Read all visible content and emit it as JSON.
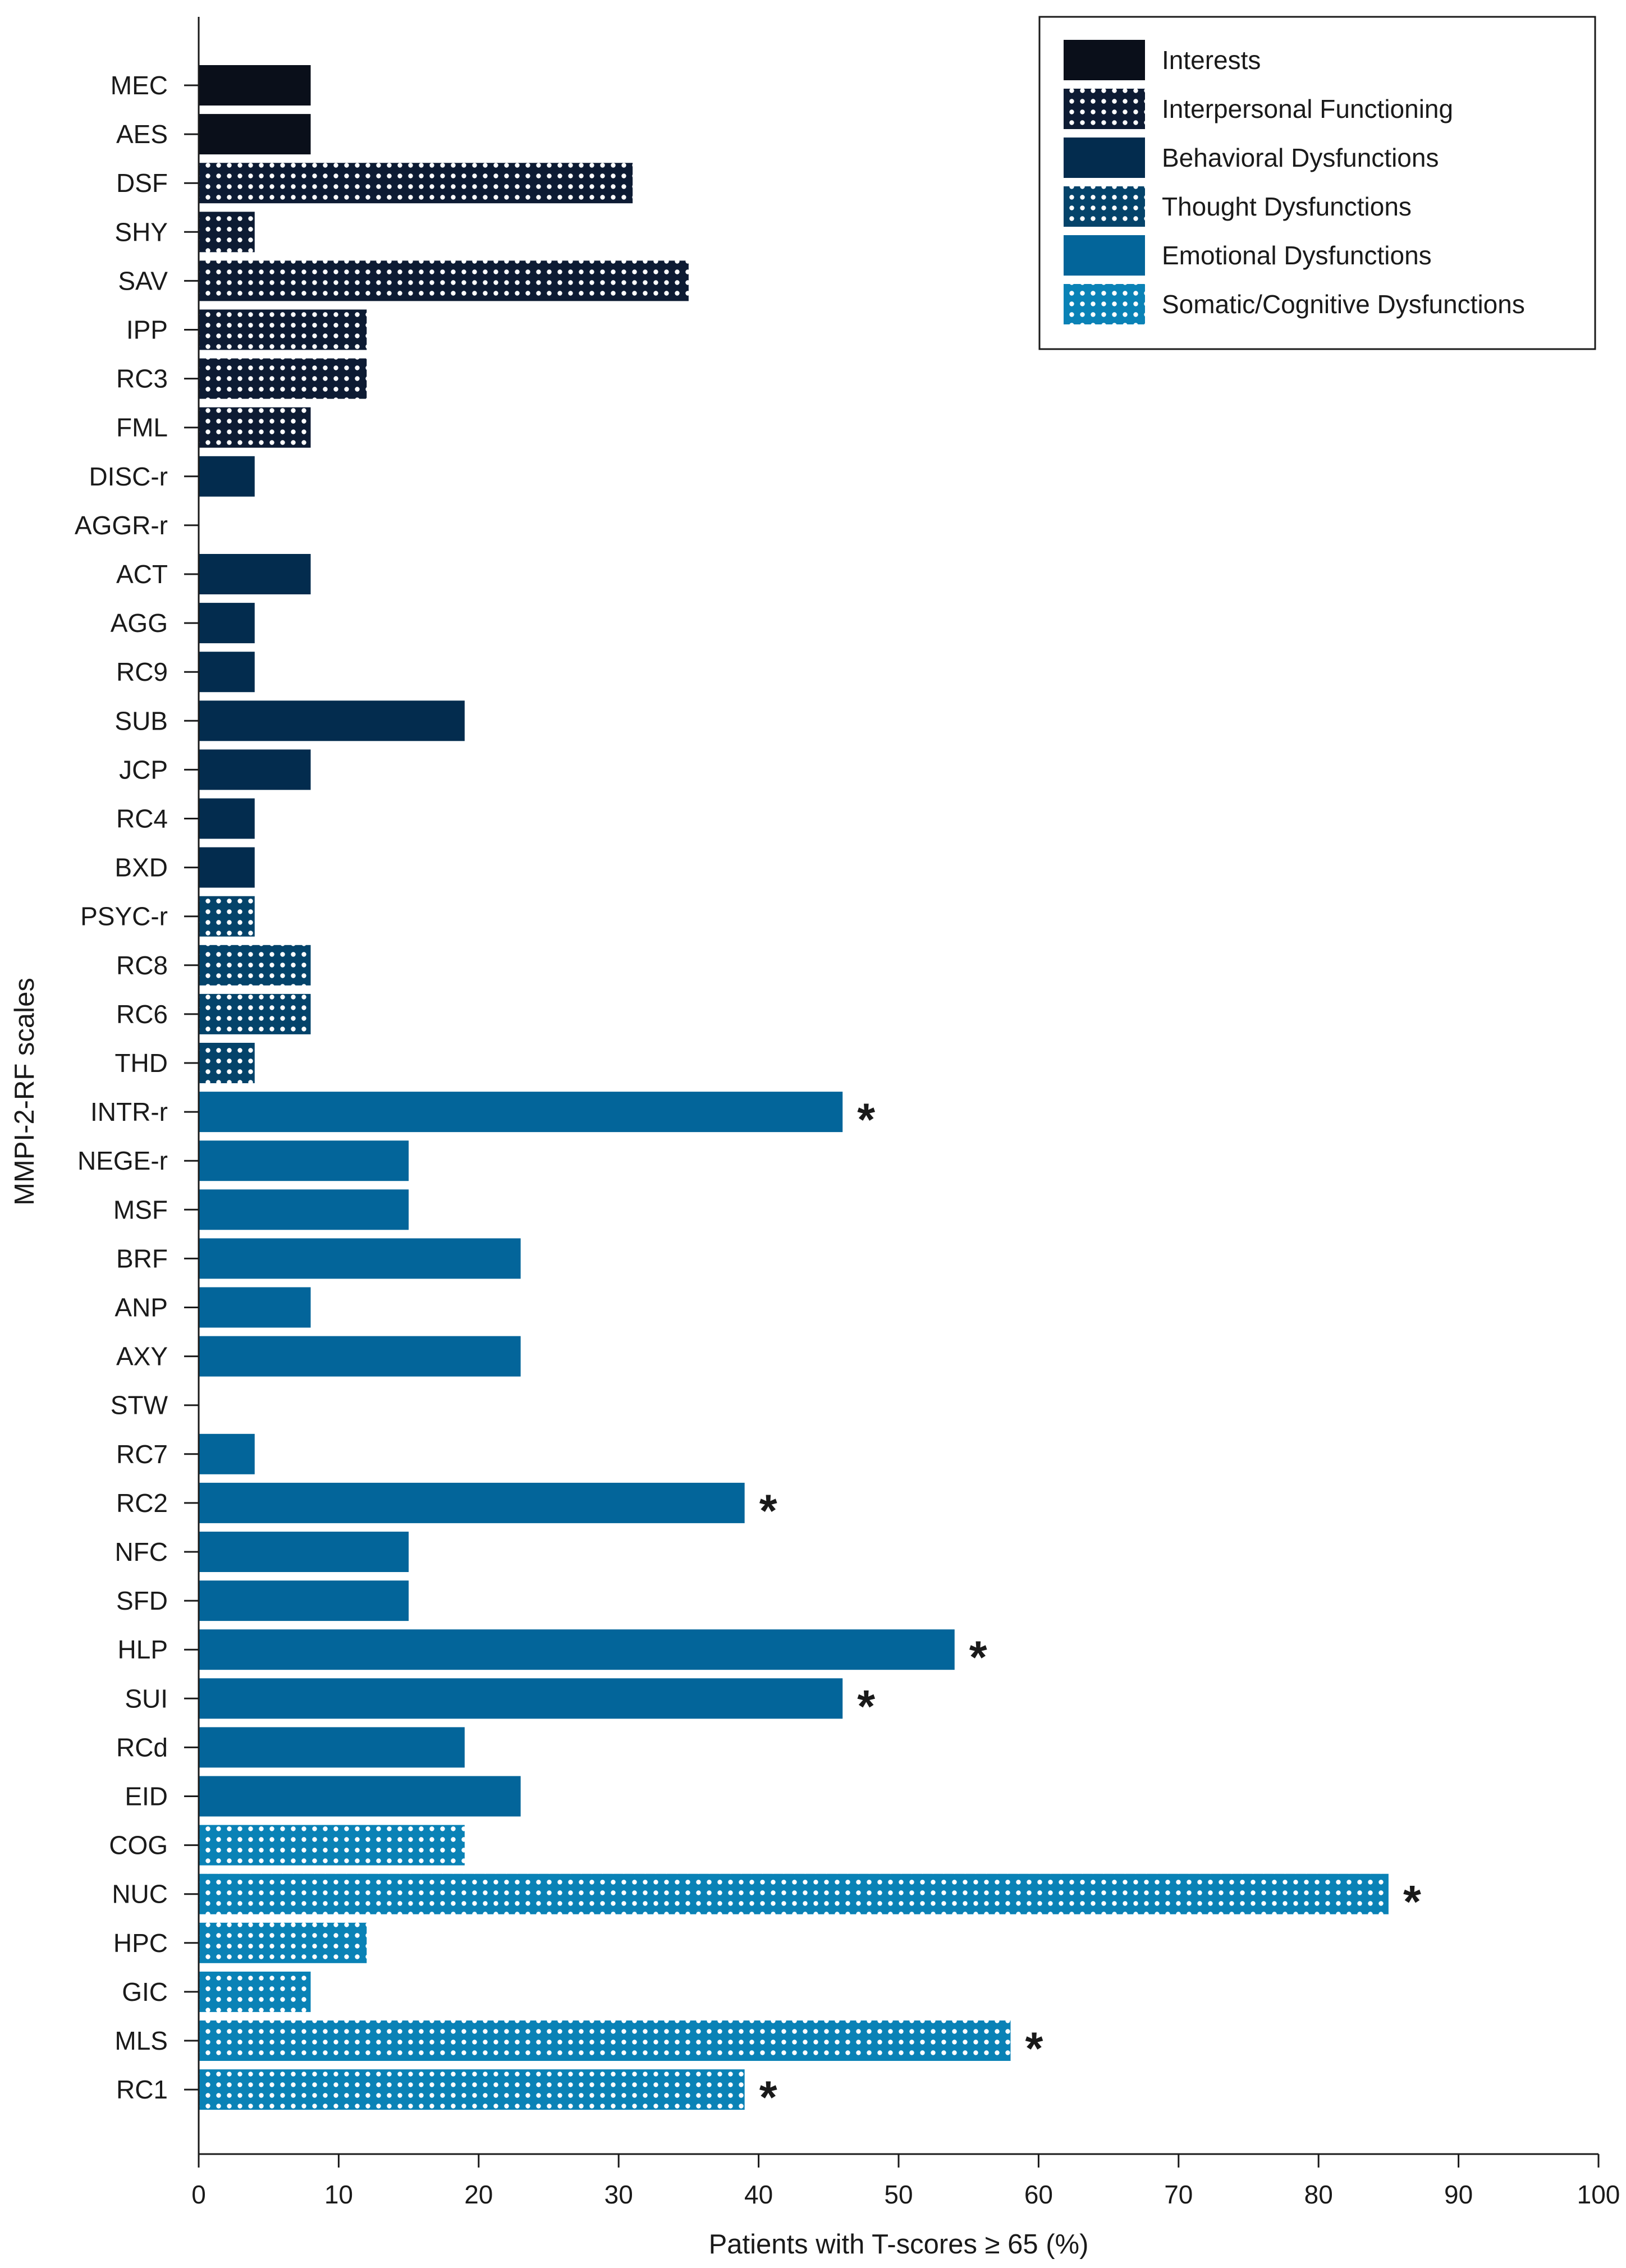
{
  "chart_data": {
    "type": "bar",
    "orientation": "horizontal",
    "title": "",
    "xlabel": "Patients with T-scores ≥ 65 (%)",
    "ylabel": "MMPI-2-RF scales",
    "xlim": [
      0,
      100
    ],
    "xticks": [
      0,
      10,
      20,
      30,
      40,
      50,
      60,
      70,
      80,
      90,
      100
    ],
    "grid": false,
    "legend_position": "top-right",
    "significance_marker": "*",
    "groups": [
      {
        "key": "int",
        "name": "Interests",
        "color": "#0a0f1a",
        "dotted": false
      },
      {
        "key": "ipf",
        "name": "Interpersonal Functioning",
        "color": "#0d1b33",
        "dotted": true
      },
      {
        "key": "beh",
        "name": "Behavioral Dysfunctions",
        "color": "#032c4e",
        "dotted": false
      },
      {
        "key": "thd",
        "name": "Thought Dysfunctions",
        "color": "#04436a",
        "dotted": true
      },
      {
        "key": "emo",
        "name": "Emotional Dysfunctions",
        "color": "#03659a",
        "dotted": false
      },
      {
        "key": "som",
        "name": "Somatic/Cognitive Dysfunctions",
        "color": "#0a82b6",
        "dotted": true
      }
    ],
    "scales": [
      {
        "label": "MEC",
        "value": 8,
        "group": "int",
        "sig": false
      },
      {
        "label": "AES",
        "value": 8,
        "group": "int",
        "sig": false
      },
      {
        "label": "DSF",
        "value": 31,
        "group": "ipf",
        "sig": false
      },
      {
        "label": "SHY",
        "value": 4,
        "group": "ipf",
        "sig": false
      },
      {
        "label": "SAV",
        "value": 35,
        "group": "ipf",
        "sig": false
      },
      {
        "label": "IPP",
        "value": 12,
        "group": "ipf",
        "sig": false
      },
      {
        "label": "RC3",
        "value": 12,
        "group": "ipf",
        "sig": false
      },
      {
        "label": "FML",
        "value": 8,
        "group": "ipf",
        "sig": false
      },
      {
        "label": "DISC-r",
        "value": 4,
        "group": "beh",
        "sig": false
      },
      {
        "label": "AGGR-r",
        "value": 0,
        "group": "beh",
        "sig": false
      },
      {
        "label": "ACT",
        "value": 8,
        "group": "beh",
        "sig": false
      },
      {
        "label": "AGG",
        "value": 4,
        "group": "beh",
        "sig": false
      },
      {
        "label": "RC9",
        "value": 4,
        "group": "beh",
        "sig": false
      },
      {
        "label": "SUB",
        "value": 19,
        "group": "beh",
        "sig": false
      },
      {
        "label": "JCP",
        "value": 8,
        "group": "beh",
        "sig": false
      },
      {
        "label": "RC4",
        "value": 4,
        "group": "beh",
        "sig": false
      },
      {
        "label": "BXD",
        "value": 4,
        "group": "beh",
        "sig": false
      },
      {
        "label": "PSYC-r",
        "value": 4,
        "group": "thd",
        "sig": false
      },
      {
        "label": "RC8",
        "value": 8,
        "group": "thd",
        "sig": false
      },
      {
        "label": "RC6",
        "value": 8,
        "group": "thd",
        "sig": false
      },
      {
        "label": "THD",
        "value": 4,
        "group": "thd",
        "sig": false
      },
      {
        "label": "INTR-r",
        "value": 46,
        "group": "emo",
        "sig": true
      },
      {
        "label": "NEGE-r",
        "value": 15,
        "group": "emo",
        "sig": false
      },
      {
        "label": "MSF",
        "value": 15,
        "group": "emo",
        "sig": false
      },
      {
        "label": "BRF",
        "value": 23,
        "group": "emo",
        "sig": false
      },
      {
        "label": "ANP",
        "value": 8,
        "group": "emo",
        "sig": false
      },
      {
        "label": "AXY",
        "value": 23,
        "group": "emo",
        "sig": false
      },
      {
        "label": "STW",
        "value": 0,
        "group": "emo",
        "sig": false
      },
      {
        "label": "RC7",
        "value": 4,
        "group": "emo",
        "sig": false
      },
      {
        "label": "RC2",
        "value": 39,
        "group": "emo",
        "sig": true
      },
      {
        "label": "NFC",
        "value": 15,
        "group": "emo",
        "sig": false
      },
      {
        "label": "SFD",
        "value": 15,
        "group": "emo",
        "sig": false
      },
      {
        "label": "HLP",
        "value": 54,
        "group": "emo",
        "sig": true
      },
      {
        "label": "SUI",
        "value": 46,
        "group": "emo",
        "sig": true
      },
      {
        "label": "RCd",
        "value": 19,
        "group": "emo",
        "sig": false
      },
      {
        "label": "EID",
        "value": 23,
        "group": "emo",
        "sig": false
      },
      {
        "label": "COG",
        "value": 19,
        "group": "som",
        "sig": false
      },
      {
        "label": "NUC",
        "value": 85,
        "group": "som",
        "sig": true
      },
      {
        "label": "HPC",
        "value": 12,
        "group": "som",
        "sig": false
      },
      {
        "label": "GIC",
        "value": 8,
        "group": "som",
        "sig": false
      },
      {
        "label": "MLS",
        "value": 58,
        "group": "som",
        "sig": true
      },
      {
        "label": "RC1",
        "value": 39,
        "group": "som",
        "sig": true
      }
    ]
  }
}
